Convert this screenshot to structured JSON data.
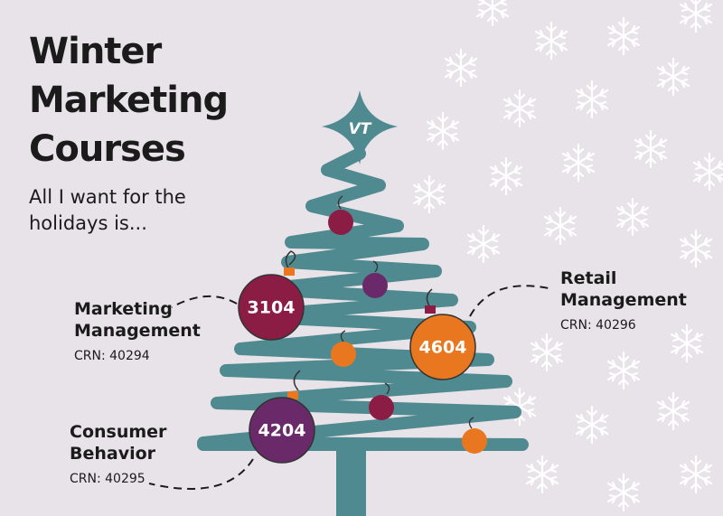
{
  "title": "Winter Marketing Courses",
  "subtitle": "All I want for the holidays is...",
  "logo": "VT",
  "courses": [
    {
      "number": "3104",
      "name": "Marketing Management",
      "crn": "CRN: 40294"
    },
    {
      "number": "4604",
      "name": "Retail Management",
      "crn": "CRN: 40296"
    },
    {
      "number": "4204",
      "name": "Consumer Behavior",
      "crn": "CRN: 40295"
    }
  ]
}
